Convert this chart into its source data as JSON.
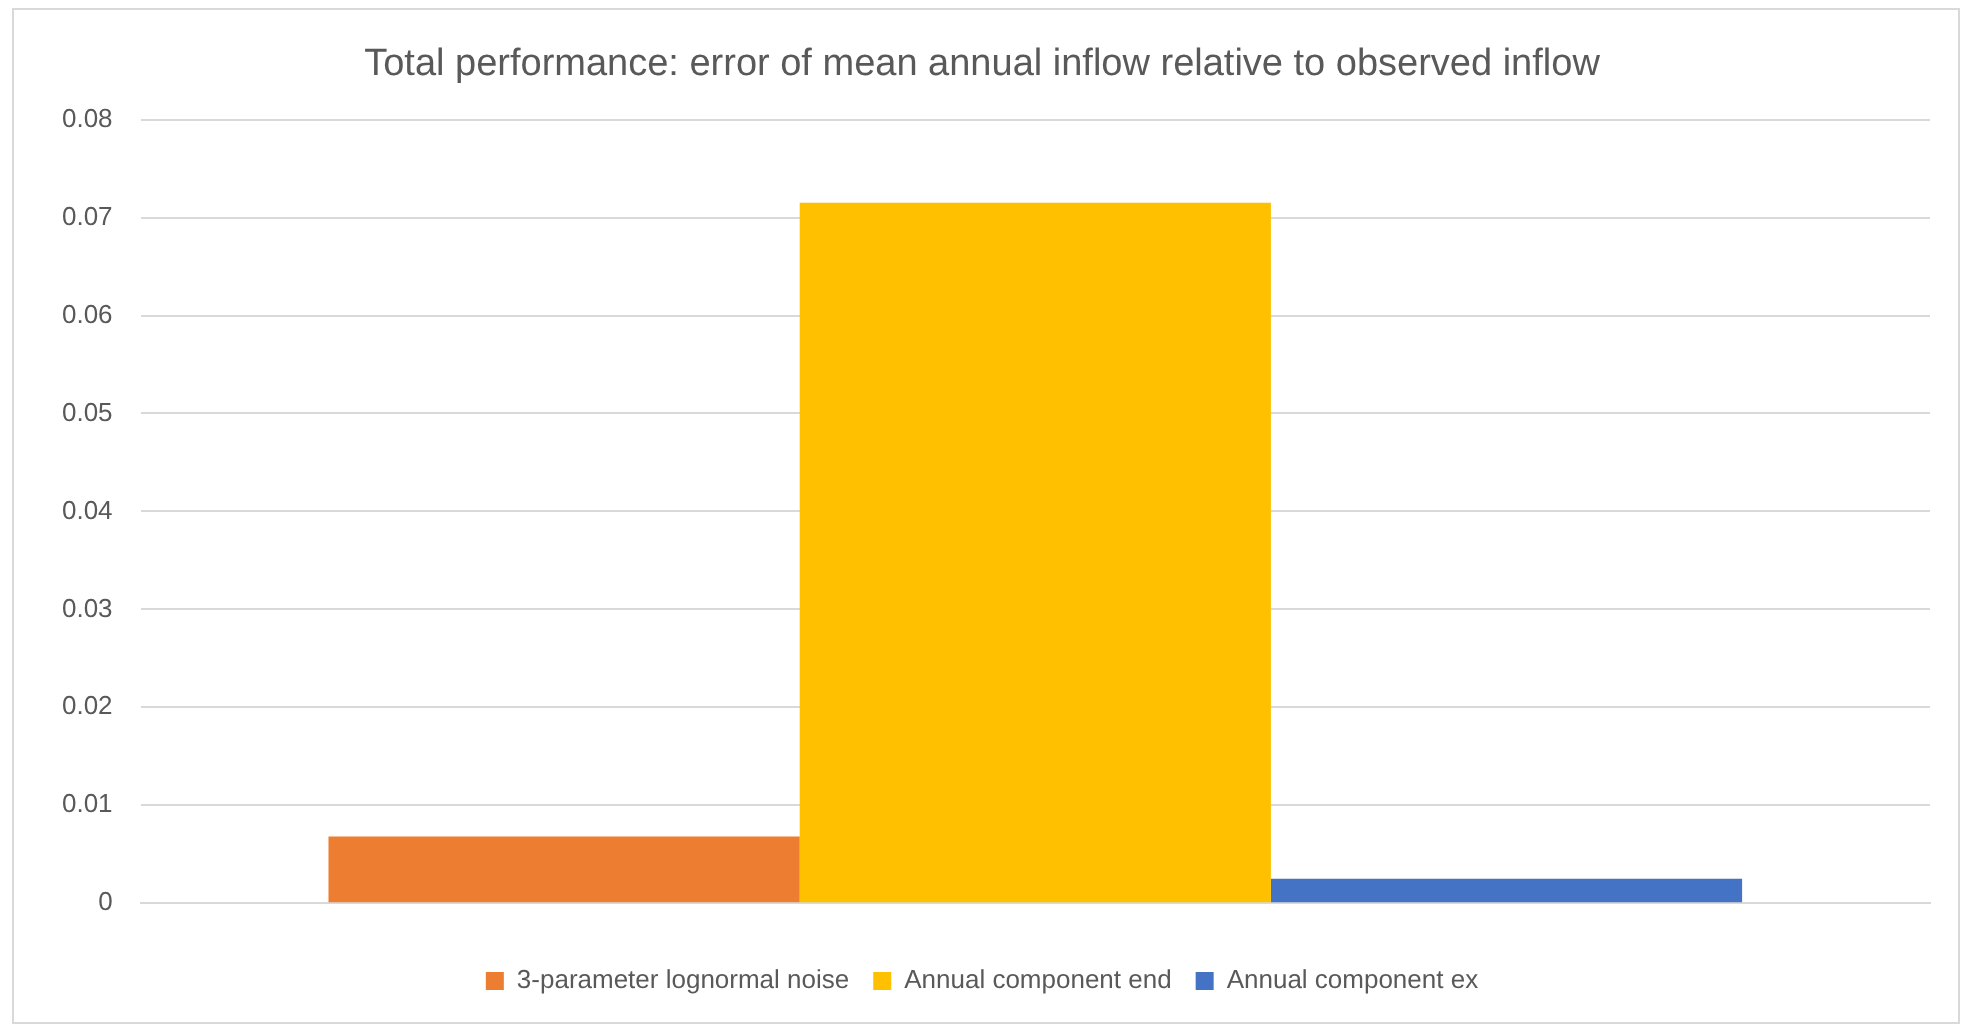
{
  "chart_data": {
    "type": "bar",
    "title": "Total performance: error of mean annual inflow relative to observed inflow",
    "categories": [
      null
    ],
    "series": [
      {
        "name": "3-parameter lognormal noise",
        "color": "#ed7d31",
        "values": [
          0.0068
        ]
      },
      {
        "name": "Annual component end",
        "color": "#ffc000",
        "values": [
          0.0715
        ]
      },
      {
        "name": "Annual component ex",
        "color": "#4472c4",
        "values": [
          0.0025
        ]
      }
    ],
    "ylim": [
      0,
      0.08
    ],
    "yticks": [
      0,
      0.01,
      0.02,
      0.03,
      0.04,
      0.05,
      0.06,
      0.07,
      0.08
    ],
    "grid": "y",
    "legend": "bottom"
  }
}
